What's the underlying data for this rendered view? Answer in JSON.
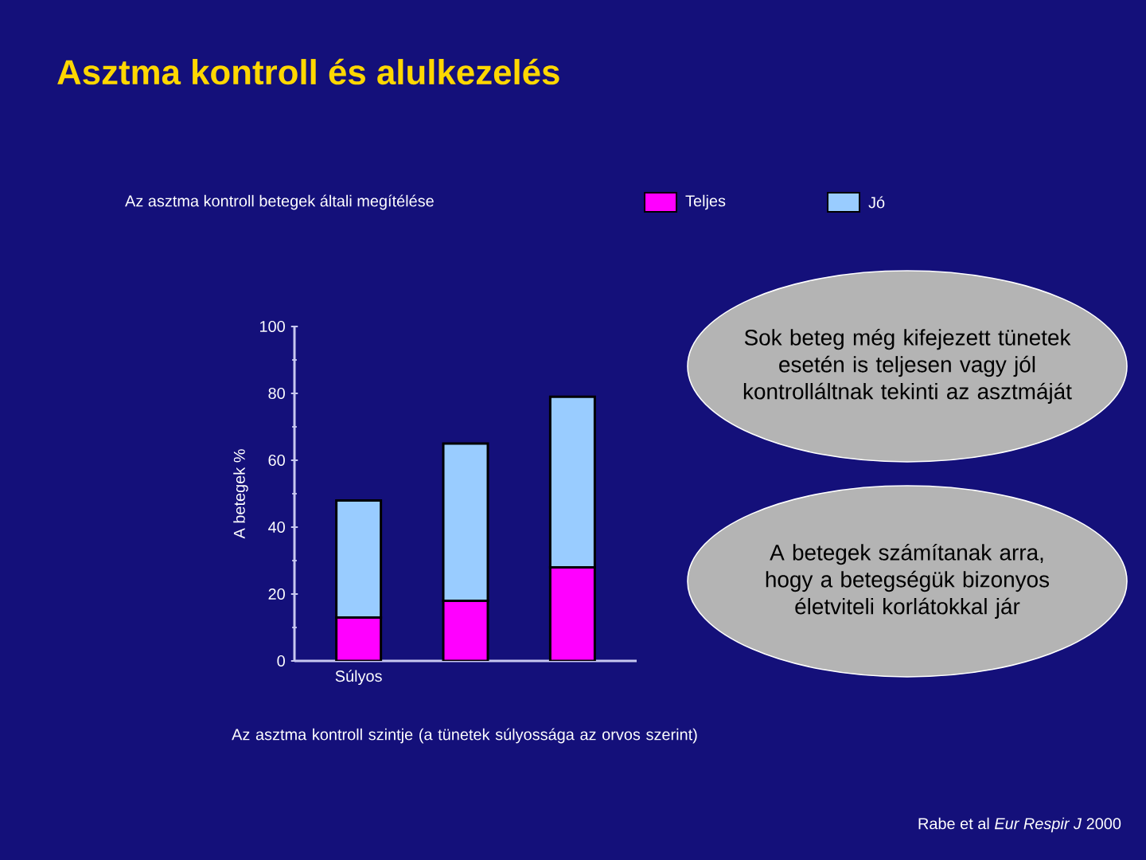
{
  "chart_data": {
    "type": "bar",
    "title": "Asztma kontroll és alulkezelés",
    "stacked": true,
    "legend": "top",
    "legend_title": "Az asztma kontroll betegek általi megítélése",
    "categories": [
      "Súlyos",
      null,
      null
    ],
    "series": [
      {
        "name": "Teljes",
        "color": "#ff00ff",
        "values": [
          13,
          18,
          28
        ]
      },
      {
        "name": "Jó",
        "color": "#99ccff",
        "values": [
          35,
          47,
          51
        ]
      }
    ],
    "ylabel": "A betegek %",
    "xlabel": "Az asztma kontroll szintje (a tünetek súlyossága az orvos szerint)",
    "ylim": [
      0,
      100
    ],
    "yticks": [
      0,
      20,
      40,
      60,
      80,
      100
    ],
    "annotations": [
      "Sok beteg még kifejezett tünetek esetén is teljesen vagy jól kontrolláltnak tekinti az asztmáját",
      "A betegek számítanak arra, hogy a betegségük bizonyos életviteli korlátokkal jár",
      "Rabe et al *Eur Respir J* 2000"
    ]
  }
}
